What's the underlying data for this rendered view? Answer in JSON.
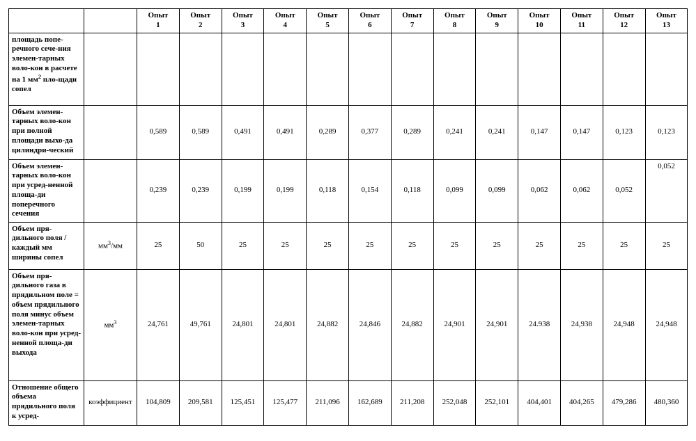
{
  "headers": {
    "blank1": "",
    "blank2": "",
    "cols": [
      "Опыт 1",
      "Опыт 2",
      "Опыт 3",
      "Опыт 4",
      "Опыт 5",
      "Опыт 6",
      "Опыт 7",
      "Опыт 8",
      "Опыт 9",
      "Опыт 10",
      "Опыт 11",
      "Опыт 12",
      "Опыт 13"
    ]
  },
  "rows": [
    {
      "label_html": "площадь попе-речного сече-ния элемен-тарных воло-кон в расчете на 1 мм<sup>2</sup> пло-щади сопел",
      "unit": "",
      "vals": [
        "",
        "",
        "",
        "",
        "",
        "",
        "",
        "",
        "",
        "",
        "",
        "",
        ""
      ],
      "tall": "tall-1",
      "val_align": "val"
    },
    {
      "label_html": "Объем элемен-тарных воло-кон при полной площади выхо-да цилиндри-ческий",
      "unit": "",
      "vals": [
        "0,589",
        "0,589",
        "0,491",
        "0,491",
        "0,289",
        "0,377",
        "0,289",
        "0,241",
        "0,241",
        "0,147",
        "0,147",
        "0,123",
        "0,123"
      ],
      "tall": "tall-2",
      "val_align": "val"
    },
    {
      "label_html": "Объем элемен-тарных воло-кон при усред-ненной площа-ди поперечного сечения",
      "unit": "",
      "vals": [
        "0,239",
        "0,239",
        "0,199",
        "0,199",
        "0,118",
        "0,154",
        "0,118",
        "0,099",
        "0,099",
        "0,062",
        "0,062",
        "0,052",
        "0,052"
      ],
      "tall": "tall-3",
      "val_align": "val",
      "last_top": true
    },
    {
      "label_html": "Объем пря-дильного поля /каждый мм ширины сопел",
      "unit_html": "мм<sup>3</sup>/мм",
      "vals": [
        "25",
        "50",
        "25",
        "25",
        "25",
        "25",
        "25",
        "25",
        "25",
        "25",
        "25",
        "25",
        "25"
      ],
      "tall": "tall-4",
      "val_align": "val"
    },
    {
      "label_html": "Объем пря-дильного газа в прядильном поле = объем прядильного поля минус объем элемен-тарных воло-кон при усред-ненной площа-ди выхода",
      "unit_html": "мм<sup>3</sup>",
      "vals": [
        "24,761",
        "49,761",
        "24,801",
        "24,801",
        "24,882",
        "24,846",
        "24,882",
        "24,901",
        "24,901",
        "24.938",
        "24,938",
        "24,948",
        "24,948"
      ],
      "tall": "tall-5",
      "val_align": "val"
    },
    {
      "label_html": "Отношение общего объема прядильного поля к усред-",
      "unit": "коэффициент",
      "vals": [
        "104,809",
        "209,581",
        "125,451",
        "125,477",
        "211,096",
        "162,689",
        "211,208",
        "252,048",
        "252,101",
        "404,401",
        "404,265",
        "479,286",
        "480,360"
      ],
      "tall": "tall-6",
      "val_align": "val"
    }
  ]
}
